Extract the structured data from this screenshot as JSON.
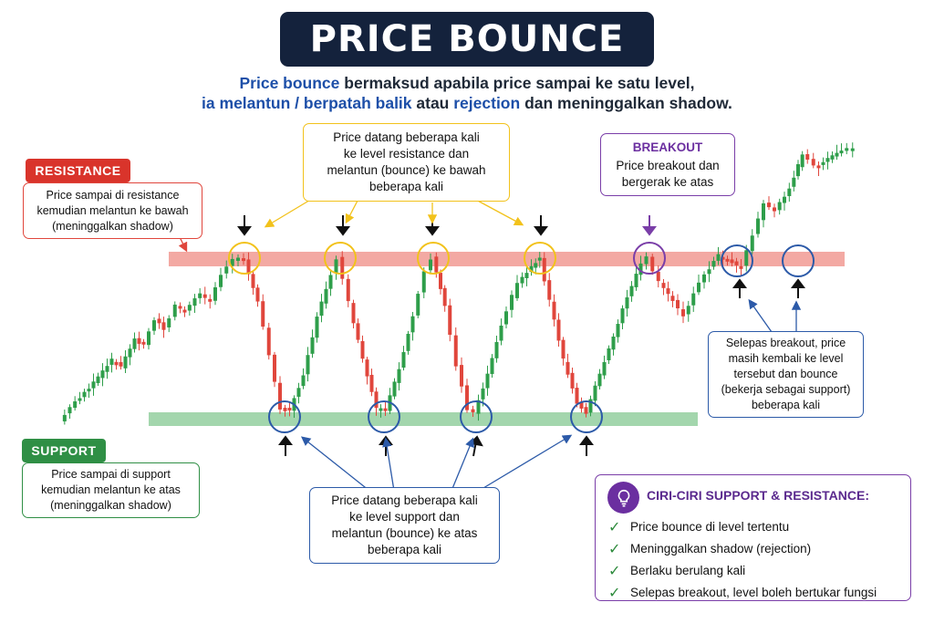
{
  "title": "PRICE BOUNCE",
  "subtitle": {
    "l1_hl": "Price bounce",
    "l1_rest": " bermaksud apabila price sampai ke satu level,",
    "l2_hl1": "ia melantun / berpatah balik",
    "l2_mid": " atau ",
    "l2_hl2": "rejection",
    "l2_rest": " dan meninggalkan shadow."
  },
  "resistance": {
    "tag": "RESISTANCE",
    "lines": [
      "Price sampai di resistance",
      "kemudian melantun ke bawah",
      "(meninggalkan shadow)"
    ]
  },
  "support": {
    "tag": "SUPPORT",
    "lines": [
      "Price sampai di support",
      "kemudian melantun ke atas",
      "(meninggalkan shadow)"
    ]
  },
  "top_callout": {
    "lines": [
      "Price datang beberapa kali",
      "ke level resistance dan",
      "melantun (bounce) ke bawah",
      "beberapa kali"
    ]
  },
  "breakout": {
    "title": "BREAKOUT",
    "lines": [
      "Price breakout dan",
      "bergerak ke atas"
    ]
  },
  "bottom_callout": {
    "lines": [
      "Price datang beberapa kali",
      "ke level support dan",
      "melantun (bounce) ke atas",
      "beberapa kali"
    ]
  },
  "retest": {
    "lines": [
      "Selepas breakout, price",
      "masih kembali ke level",
      "tersebut dan bounce",
      "(bekerja sebagai support)",
      "beberapa kali"
    ]
  },
  "ciri": {
    "title": "CIRI-CIRI SUPPORT & RESISTANCE:",
    "items": [
      "Price bounce di level tertentu",
      "Meninggalkan shadow (rejection)",
      "Berlaku berulang kali",
      "Selepas breakout, level boleh bertukar fungsi"
    ]
  },
  "colors": {
    "bull": "#2e9e4a",
    "bear": "#e0463c",
    "resistance": "#d9342b",
    "support": "#2f8f45",
    "amber": "#f2c21b",
    "blue": "#2c5aa8",
    "purple": "#7a3ea8"
  },
  "candle_path": [
    [
      "s",
      68,
      462
    ],
    [
      "u",
      85,
      440
    ],
    [
      "u",
      105,
      420
    ],
    [
      "u",
      125,
      395
    ],
    [
      "d",
      135,
      402
    ],
    [
      "u",
      150,
      372
    ],
    [
      "d",
      160,
      378
    ],
    [
      "u",
      172,
      350
    ],
    [
      "d",
      182,
      360
    ],
    [
      "u",
      195,
      335
    ],
    [
      "d",
      205,
      342
    ],
    [
      "u",
      222,
      322
    ],
    [
      "d",
      233,
      330
    ],
    [
      "u",
      245,
      300
    ],
    [
      "u",
      258,
      285
    ],
    [
      "p",
      270,
      283
    ],
    [
      "d",
      285,
      330
    ],
    [
      "d",
      298,
      390
    ],
    [
      "d",
      310,
      448
    ],
    [
      "p",
      320,
      450
    ],
    [
      "u",
      335,
      410
    ],
    [
      "u",
      350,
      348
    ],
    [
      "u",
      365,
      300
    ],
    [
      "p",
      372,
      283
    ],
    [
      "d",
      385,
      332
    ],
    [
      "d",
      400,
      395
    ],
    [
      "d",
      415,
      448
    ],
    [
      "p",
      425,
      450
    ],
    [
      "u",
      440,
      405
    ],
    [
      "u",
      455,
      345
    ],
    [
      "u",
      468,
      298
    ],
    [
      "p",
      476,
      283
    ],
    [
      "d",
      490,
      335
    ],
    [
      "d",
      503,
      400
    ],
    [
      "d",
      515,
      448
    ],
    [
      "p",
      522,
      452
    ],
    [
      "u",
      537,
      410
    ],
    [
      "u",
      552,
      355
    ],
    [
      "u",
      570,
      310
    ],
    [
      "u",
      585,
      292
    ],
    [
      "p",
      594,
      283
    ],
    [
      "d",
      605,
      330
    ],
    [
      "d",
      620,
      395
    ],
    [
      "d",
      635,
      442
    ],
    [
      "p",
      645,
      452
    ],
    [
      "u",
      660,
      410
    ],
    [
      "u",
      675,
      370
    ],
    [
      "u",
      690,
      325
    ],
    [
      "u",
      705,
      290
    ],
    [
      "p",
      712,
      283
    ],
    [
      "d",
      725,
      310
    ],
    [
      "d",
      740,
      330
    ],
    [
      "d",
      752,
      345
    ],
    [
      "u",
      763,
      322
    ],
    [
      "u",
      775,
      300
    ],
    [
      "u",
      790,
      280
    ],
    [
      "p",
      805,
      288
    ],
    [
      "d",
      815,
      292
    ],
    [
      "u",
      828,
      258
    ],
    [
      "u",
      840,
      222
    ],
    [
      "d",
      852,
      232
    ],
    [
      "u",
      868,
      205
    ],
    [
      "u",
      882,
      170
    ],
    [
      "d",
      895,
      182
    ],
    [
      "u",
      910,
      175
    ],
    [
      "u",
      925,
      165
    ],
    [
      "u",
      938,
      162
    ]
  ]
}
